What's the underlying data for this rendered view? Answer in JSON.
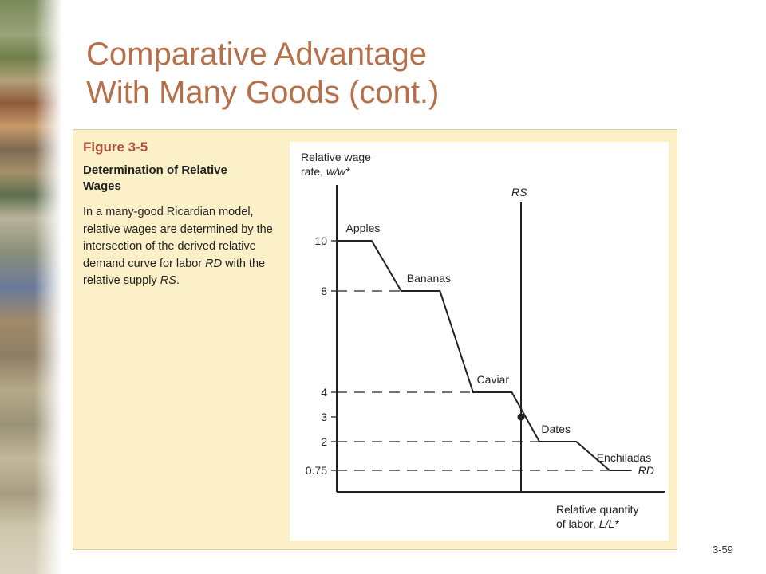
{
  "slide": {
    "title_line1": "Comparative Advantage",
    "title_line2": "With Many Goods (cont.)",
    "page_number": "3-59"
  },
  "figure": {
    "number": "Figure 3-5",
    "heading": "Determination of Relative Wages",
    "caption_parts": [
      "In a many-good Ricardian model, relative wages are determined by the intersection of the derived relative demand curve for labor ",
      "RD",
      " with the relative supply ",
      "RS",
      "."
    ]
  },
  "chart_data": {
    "type": "line",
    "ylabel_line1": "Relative wage",
    "ylabel_line2_text": "rate, ",
    "ylabel_line2_var": "w/w*",
    "xlabel_line1": "Relative quantity",
    "xlabel_line2_text": "of labor, ",
    "xlabel_line2_var": "L/L*",
    "y_ticks": [
      {
        "value": 10,
        "label": "10"
      },
      {
        "value": 8,
        "label": "8"
      },
      {
        "value": 4,
        "label": "4"
      },
      {
        "value": 3,
        "label": "3"
      },
      {
        "value": 2,
        "label": "2"
      },
      {
        "value": 0.75,
        "label": "0.75"
      }
    ],
    "rd_curve": {
      "name": "RD",
      "points": [
        [
          0.0,
          10
        ],
        [
          0.19,
          10
        ],
        [
          0.35,
          8
        ],
        [
          0.56,
          8
        ],
        [
          0.74,
          4
        ],
        [
          0.95,
          4
        ],
        [
          1.1,
          2
        ],
        [
          1.3,
          2
        ],
        [
          1.48,
          0.75
        ],
        [
          1.6,
          0.75
        ]
      ]
    },
    "rs_line": {
      "name": "RS",
      "x": 1.0
    },
    "equilibrium": {
      "x": 1.0,
      "y": 3
    },
    "goods": [
      {
        "label": "Apples",
        "x": 0.05,
        "y": 10
      },
      {
        "label": "Bananas",
        "x": 0.38,
        "y": 8
      },
      {
        "label": "Caviar",
        "x": 0.76,
        "y": 4
      },
      {
        "label": "Dates",
        "x": 1.11,
        "y": 2
      },
      {
        "label": "Enchiladas",
        "x": 1.41,
        "y": 0.75
      }
    ]
  }
}
